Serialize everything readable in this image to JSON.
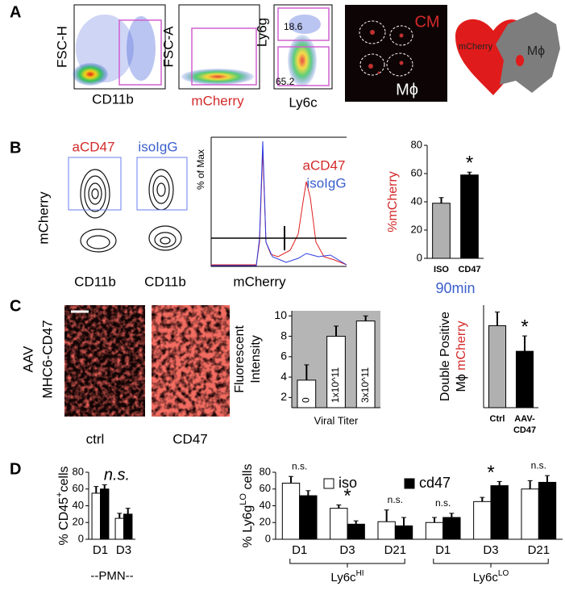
{
  "panels": {
    "A": {
      "label": "A",
      "plot1": {
        "ylabel": "FSC-H",
        "xlabel": "CD11b"
      },
      "plot2": {
        "ylabel": "FSC-A",
        "xlabel": "mCherry"
      },
      "plot3": {
        "ylabel": "Ly6g",
        "xlabel": "Ly6c",
        "gate_high": "18.6",
        "gate_low": "65.2"
      },
      "image": {
        "cm": "CM",
        "mphi": "Mϕ"
      },
      "cartoon": {
        "heart": "mCherry",
        "cell": "Mϕ"
      }
    },
    "B": {
      "label": "B",
      "contour": {
        "title_left": "aCD47",
        "title_right": "isoIgG",
        "ylabel": "mCherry",
        "xlabel_left": "CD11b",
        "xlabel_right": "CD11b"
      },
      "histogram": {
        "ylabel": "% of Max",
        "xlabel": "mCherry",
        "legend_red": "aCD47",
        "legend_blue": "isoIgG"
      }
    },
    "C": {
      "label": "C",
      "ylabel": [
        "AAV",
        "MHC6-CD47"
      ],
      "left_image": "ctrl",
      "right_image": "CD47"
    },
    "D": {
      "label": "D"
    }
  },
  "chart_data": [
    {
      "type": "bar",
      "ylabel": [
        [
          {
            "text": "%mCherry",
            "color": "#d42a2a"
          }
        ]
      ],
      "xlabel": "90min",
      "xlabel_color": "#3a5fcd",
      "categories": [
        "ISO",
        "CD47"
      ],
      "values": [
        39,
        59
      ],
      "errors": [
        4,
        2
      ],
      "colors": [
        "#b0b0b0",
        "#000000"
      ],
      "ylim": [
        0,
        80
      ],
      "yticks": [
        0,
        20,
        40,
        60,
        80
      ],
      "annotations": [
        null,
        "*"
      ]
    },
    {
      "type": "bar",
      "ylabel": [
        [
          {
            "text": "Fluorescent"
          }
        ],
        [
          {
            "text": "Intensity"
          }
        ]
      ],
      "xlabel": "Viral Titer",
      "categories": [
        "0",
        "1x10^11",
        "3x10^11"
      ],
      "values": [
        3.7,
        8,
        9.5
      ],
      "errors": [
        1.5,
        1,
        0.5
      ],
      "colors": [
        "#ffffff",
        "#ffffff",
        "#ffffff"
      ],
      "ylim": [
        1,
        10.5
      ],
      "yticks": [
        2,
        4,
        6,
        8,
        10
      ],
      "plot_background": "#b5b5b5",
      "category_labels_inside": true
    },
    {
      "type": "bar",
      "ylabel": [
        [
          {
            "text": "Double Positive"
          }
        ],
        [
          {
            "text": "Mϕ "
          },
          {
            "text": "mCherry",
            "color": "#d42a2a"
          }
        ]
      ],
      "categories": [
        "Ctrl",
        "AAV-CD47"
      ],
      "values": [
        48,
        33
      ],
      "errors": [
        8,
        9
      ],
      "colors": [
        "#b0b0b0",
        "#000000"
      ],
      "ylim": [
        0,
        60
      ],
      "annotations": [
        null,
        "*"
      ]
    },
    {
      "type": "bar",
      "ylabel": [
        [
          {
            "text": "% CD45"
          },
          {
            "text": "+",
            "sup": true
          },
          {
            "text": "cells"
          }
        ]
      ],
      "categories": [
        "D1",
        "D3"
      ],
      "series": [
        {
          "color": "#ffffff",
          "values": [
            55,
            25
          ],
          "errors": [
            8,
            6
          ]
        },
        {
          "color": "#000000",
          "values": [
            60,
            30
          ],
          "errors": [
            5,
            7
          ]
        }
      ],
      "ylim": [
        0,
        80
      ],
      "yticks": [
        0,
        20,
        40,
        60,
        80
      ],
      "annotation": "n.s.",
      "group_label": "--PMN--"
    },
    {
      "type": "bar",
      "ylabel": [
        [
          {
            "text": "% Ly6g"
          },
          {
            "text": "LO",
            "sup": true
          },
          {
            "text": " cells"
          }
        ]
      ],
      "categories": [
        "D1",
        "D3",
        "D21",
        "D1",
        "D3",
        "D21"
      ],
      "series": [
        {
          "name": "iso",
          "color": "#ffffff",
          "values": [
            67,
            37,
            21,
            20,
            45,
            60
          ],
          "errors": [
            8,
            4,
            14,
            6,
            5,
            10
          ]
        },
        {
          "name": "cd47",
          "color": "#000000",
          "values": [
            52,
            18,
            16,
            26,
            64,
            68
          ],
          "errors": [
            6,
            4,
            10,
            5,
            5,
            8
          ]
        }
      ],
      "ylim": [
        0,
        80
      ],
      "yticks": [
        0,
        20,
        40,
        60,
        80
      ],
      "legend": "top",
      "annotations": [
        "n.s.",
        "*",
        "n.s.",
        "n.s.",
        "*",
        "n.s."
      ],
      "groups": [
        {
          "label": "Ly6c",
          "sup": "HI"
        },
        {
          "label": "Ly6c",
          "sup": "LO"
        }
      ]
    }
  ]
}
